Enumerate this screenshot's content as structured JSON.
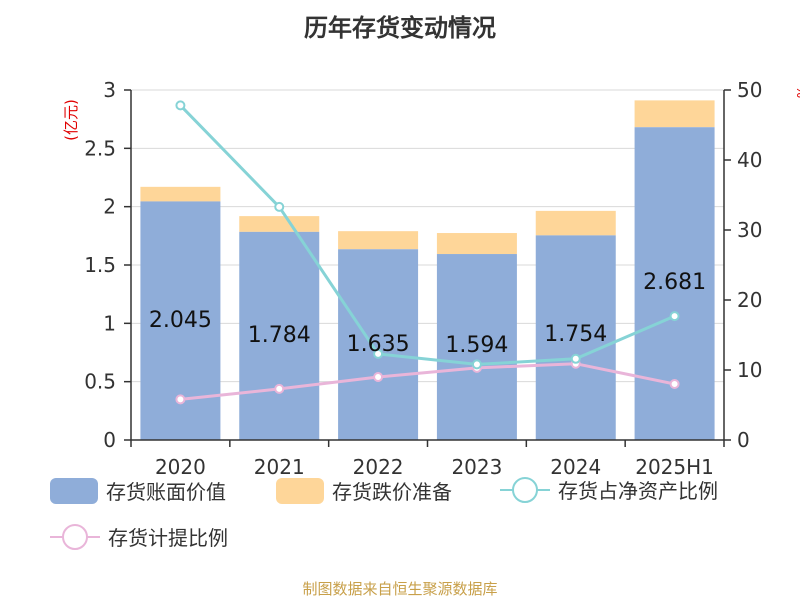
{
  "title": "历年存货变动情况",
  "source": "制图数据来自恒生聚源数据库",
  "colors": {
    "book_value": "#8fadd9",
    "provision": "#fed699",
    "net_asset_ratio": "#86d3d6",
    "provision_ratio": "#e9b5d9",
    "left_unit": "#e00000",
    "source": "#c8a04a",
    "axis": "#333333",
    "grid": "#d9d9d9"
  },
  "chart_data": {
    "type": "bar",
    "stacked": true,
    "title": "历年存货变动情况",
    "categories": [
      "2020",
      "2021",
      "2022",
      "2023",
      "2024",
      "2025H1"
    ],
    "y_left": {
      "label": "(亿元)",
      "ticks": [
        "0",
        "0.5",
        "1",
        "1.5",
        "2",
        "2.5",
        "3"
      ],
      "ylim": [
        0,
        3
      ]
    },
    "y_right": {
      "label": "%",
      "ticks": [
        "0",
        "10",
        "20",
        "30",
        "40",
        "50"
      ],
      "ylim": [
        0,
        50
      ]
    },
    "grid": true,
    "legend_position": "bottom",
    "series": [
      {
        "name": "存货账面价值",
        "kind": "bar",
        "axis": "left",
        "values": [
          2.045,
          1.784,
          1.635,
          1.594,
          1.754,
          2.681
        ],
        "labels": [
          "2.045",
          "1.784",
          "1.635",
          "1.594",
          "1.754",
          "2.681"
        ]
      },
      {
        "name": "存货跌价准备",
        "kind": "bar",
        "axis": "left",
        "values": [
          0.125,
          0.135,
          0.155,
          0.18,
          0.21,
          0.23
        ]
      },
      {
        "name": "存货占净资产比例",
        "kind": "line",
        "axis": "right",
        "values": [
          47.8,
          33.3,
          12.3,
          10.8,
          11.6,
          17.7
        ]
      },
      {
        "name": "存货计提比例",
        "kind": "line",
        "axis": "right",
        "values": [
          5.8,
          7.3,
          9.0,
          10.3,
          10.9,
          8.0
        ]
      }
    ]
  }
}
